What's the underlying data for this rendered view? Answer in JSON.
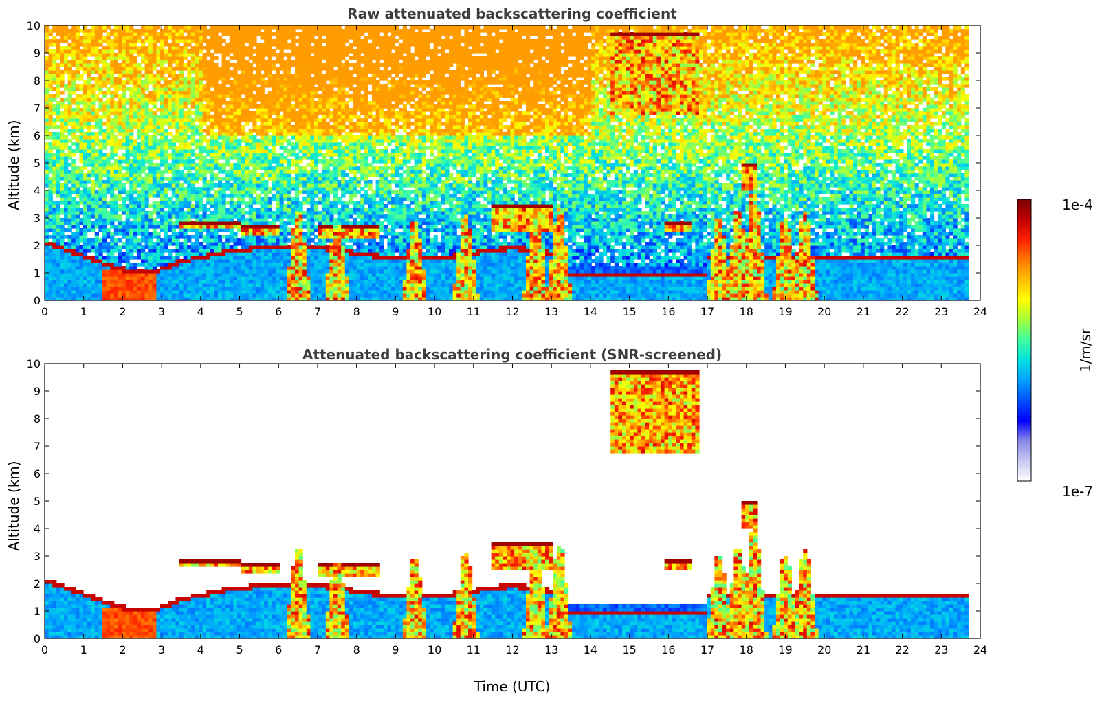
{
  "chart_data": [
    {
      "type": "heatmap",
      "title": "Raw attenuated backscattering coefficient",
      "ylabel": "Altitude (km)",
      "xlabel": "",
      "xlim": [
        0,
        24
      ],
      "ylim": [
        0,
        10
      ],
      "xticks": [
        "0",
        "1",
        "2",
        "3",
        "4",
        "5",
        "6",
        "7",
        "8",
        "9",
        "10",
        "11",
        "12",
        "13",
        "14",
        "15",
        "16",
        "17",
        "18",
        "19",
        "20",
        "21",
        "22",
        "23",
        "24"
      ],
      "yticks": [
        "0",
        "1",
        "2",
        "3",
        "4",
        "5",
        "6",
        "7",
        "8",
        "9",
        "10"
      ],
      "data_end_time": 23.7,
      "features": {
        "boundary_layer_top_km": [
          [
            0,
            2.2
          ],
          [
            1,
            1.7
          ],
          [
            2,
            1.2
          ],
          [
            2.8,
            1.1
          ],
          [
            3.5,
            1.5
          ],
          [
            4.5,
            1.8
          ],
          [
            5.5,
            2.0
          ],
          [
            7,
            2.0
          ],
          [
            8,
            1.8
          ],
          [
            9,
            1.6
          ],
          [
            10,
            1.6
          ],
          [
            11,
            1.8
          ],
          [
            12,
            2.0
          ],
          [
            13,
            1.8
          ]
        ],
        "cloud_layers": [
          {
            "t_start": 3.5,
            "t_end": 5.0,
            "base_km": 2.6,
            "top_km": 2.9
          },
          {
            "t_start": 5.0,
            "t_end": 6.0,
            "base_km": 2.4,
            "top_km": 2.7
          },
          {
            "t_start": 7.0,
            "t_end": 8.6,
            "base_km": 2.3,
            "top_km": 2.8
          },
          {
            "t_start": 11.5,
            "t_end": 13.0,
            "base_km": 2.5,
            "top_km": 3.5
          },
          {
            "t_start": 15.9,
            "t_end": 16.6,
            "base_km": 2.5,
            "top_km": 2.9
          },
          {
            "t_start": 17.9,
            "t_end": 18.3,
            "base_km": 4.0,
            "top_km": 5.0
          },
          {
            "t_start": 14.5,
            "t_end": 16.8,
            "base_km": 6.8,
            "top_km": 9.7
          }
        ],
        "convective_plumes_km": [
          [
            6.5,
            3.3
          ],
          [
            7.5,
            2.8
          ],
          [
            9.5,
            2.9
          ],
          [
            10.8,
            3.1
          ],
          [
            12.6,
            3.3
          ],
          [
            13.2,
            3.4
          ],
          [
            17.3,
            3.0
          ],
          [
            17.8,
            3.2
          ],
          [
            18.2,
            4.0
          ],
          [
            19.0,
            3.0
          ],
          [
            19.5,
            3.2
          ]
        ]
      }
    },
    {
      "type": "heatmap",
      "title": "Attenuated backscattering coefficient (SNR-screened)",
      "ylabel": "Altitude (km)",
      "xlabel": "Time (UTC)",
      "xlim": [
        0,
        24
      ],
      "ylim": [
        0,
        10
      ],
      "xticks": [
        "0",
        "1",
        "2",
        "3",
        "4",
        "5",
        "6",
        "7",
        "8",
        "9",
        "10",
        "11",
        "12",
        "13",
        "14",
        "15",
        "16",
        "17",
        "18",
        "19",
        "20",
        "21",
        "22",
        "23",
        "24"
      ],
      "yticks": [
        "0",
        "1",
        "2",
        "3",
        "4",
        "5",
        "6",
        "7",
        "8",
        "9",
        "10"
      ],
      "data_end_time": 23.7
    }
  ],
  "colorbar": {
    "min_label": "1e-7",
    "max_label": "1e-4",
    "label": "1/m/sr",
    "colormap": [
      "#ffffff",
      "#c8c8f0",
      "#8888e8",
      "#0000ff",
      "#0050ff",
      "#00a0ff",
      "#00e0e0",
      "#40ffa0",
      "#a0ff40",
      "#ffff00",
      "#ffc000",
      "#ff7800",
      "#ff2000",
      "#c00000",
      "#7a0000"
    ]
  }
}
